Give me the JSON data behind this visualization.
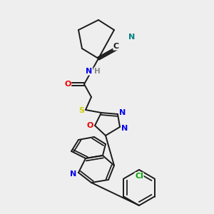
{
  "background_color": "#eeeeee",
  "bond_color": "#1a1a1a",
  "atom_colors": {
    "N": "#0000ee",
    "O": "#ee0000",
    "S": "#cccc00",
    "Cl": "#00aa00",
    "CN": "#008080",
    "H": "#888888"
  },
  "figsize": [
    3.0,
    3.0
  ],
  "dpi": 100
}
